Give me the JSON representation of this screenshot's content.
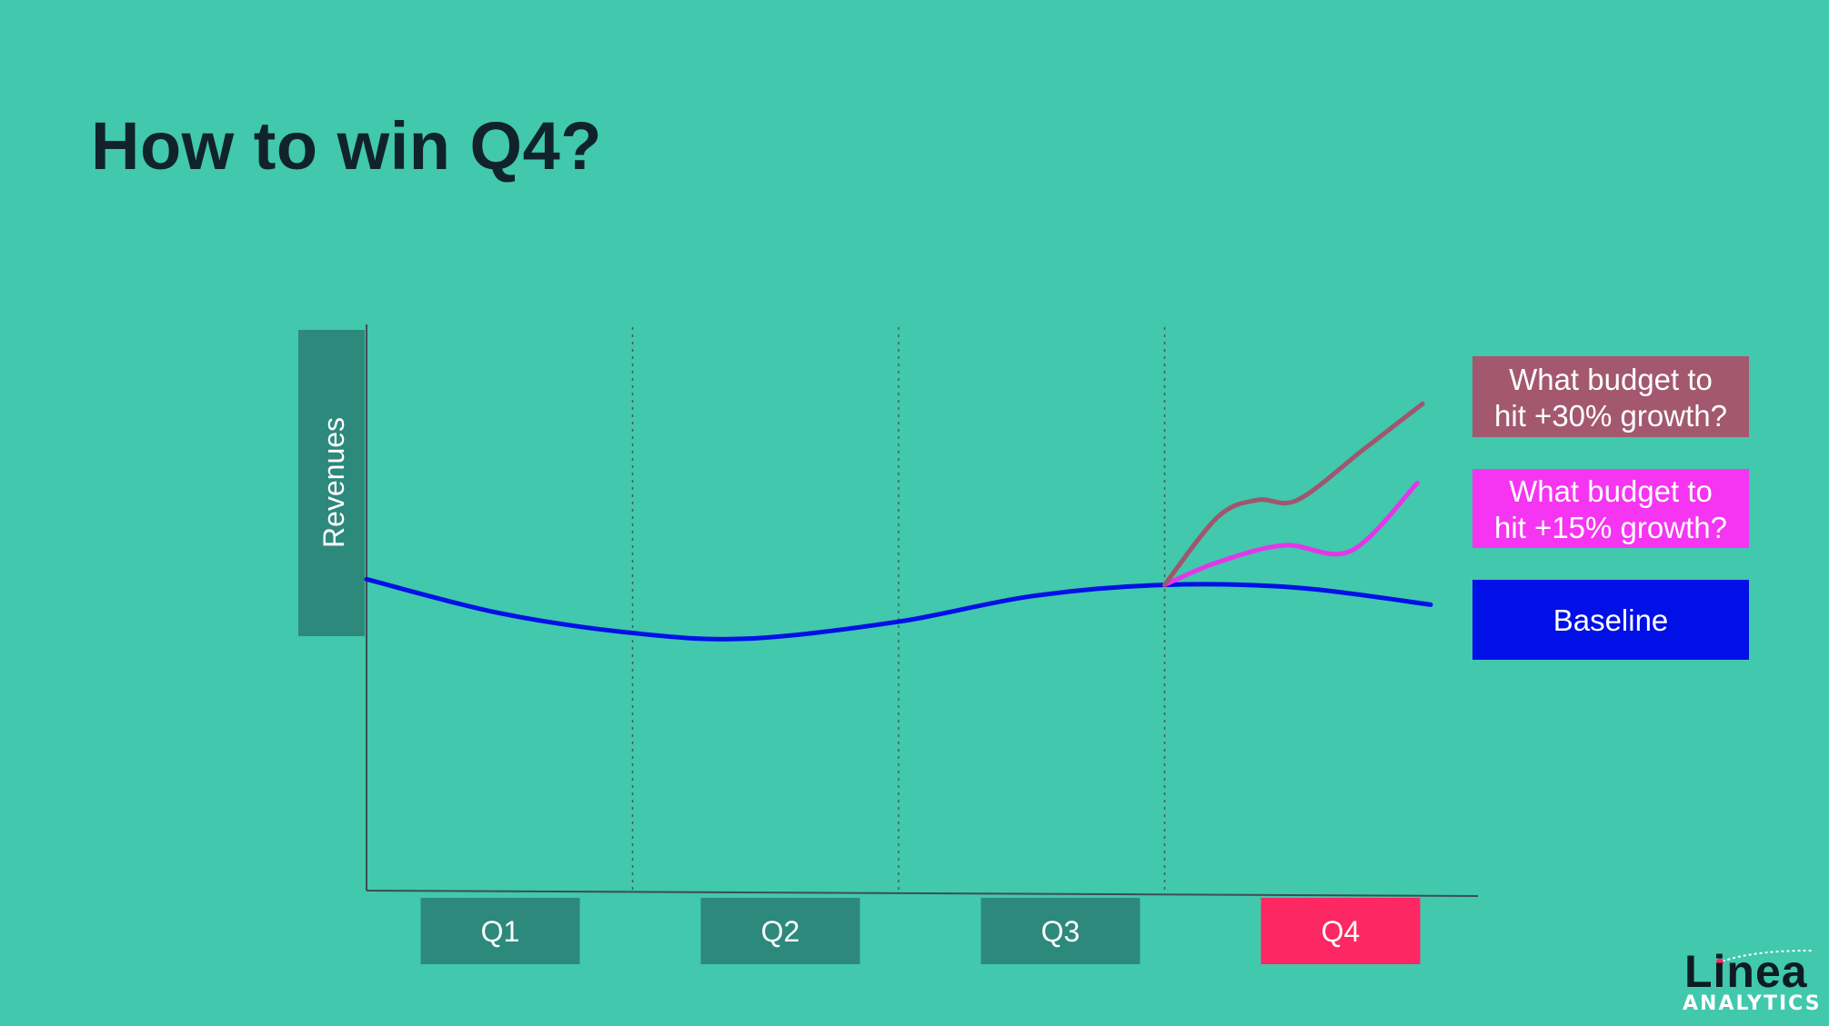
{
  "page": {
    "title": "How to win Q4?"
  },
  "chart_data": {
    "type": "line",
    "title": "",
    "xlabel": "",
    "ylabel": "Revenues",
    "categories": [
      "Q1",
      "Q2",
      "Q3",
      "Q4"
    ],
    "highlight_category": "Q4",
    "grid": "vertical dotted lines at quarter boundaries",
    "x_range": [
      0,
      4
    ],
    "y_range": [
      0,
      100
    ],
    "series": [
      {
        "name": "Baseline",
        "color": "#0010e6",
        "x": [
          0,
          0.5,
          1.0,
          1.43,
          2.0,
          2.5,
          3.0,
          3.5,
          4.0
        ],
        "y": [
          55,
          49,
          45.5,
          44.5,
          47.5,
          52,
          54,
          53.5,
          50.5
        ]
      },
      {
        "name": "What budget to hit +15% growth?",
        "color": "#e535e8",
        "x": [
          3.0,
          3.2,
          3.45,
          3.7,
          3.95
        ],
        "y": [
          54,
          58,
          61,
          60,
          72
        ]
      },
      {
        "name": "What budget to hit +30% growth?",
        "color": "#a0566e",
        "x": [
          3.0,
          3.2,
          3.35,
          3.5,
          3.75,
          3.97
        ],
        "y": [
          54,
          66,
          69,
          69,
          78,
          86
        ]
      }
    ]
  },
  "labels": {
    "growth_30": [
      "What budget to",
      "hit +30% growth?"
    ],
    "growth_15": [
      "What budget to",
      "hit +15% growth?"
    ],
    "baseline": "Baseline"
  },
  "colors": {
    "background": "#41c8ad",
    "tag_fill": "#2e897d",
    "q4_fill": "#fc2763",
    "label_30_fill": "#a3586f",
    "label_15_fill": "#f535f2",
    "label_baseline_fill": "#0010e6"
  },
  "logo": {
    "word": "Linea",
    "sub": "ANALYTICS"
  }
}
